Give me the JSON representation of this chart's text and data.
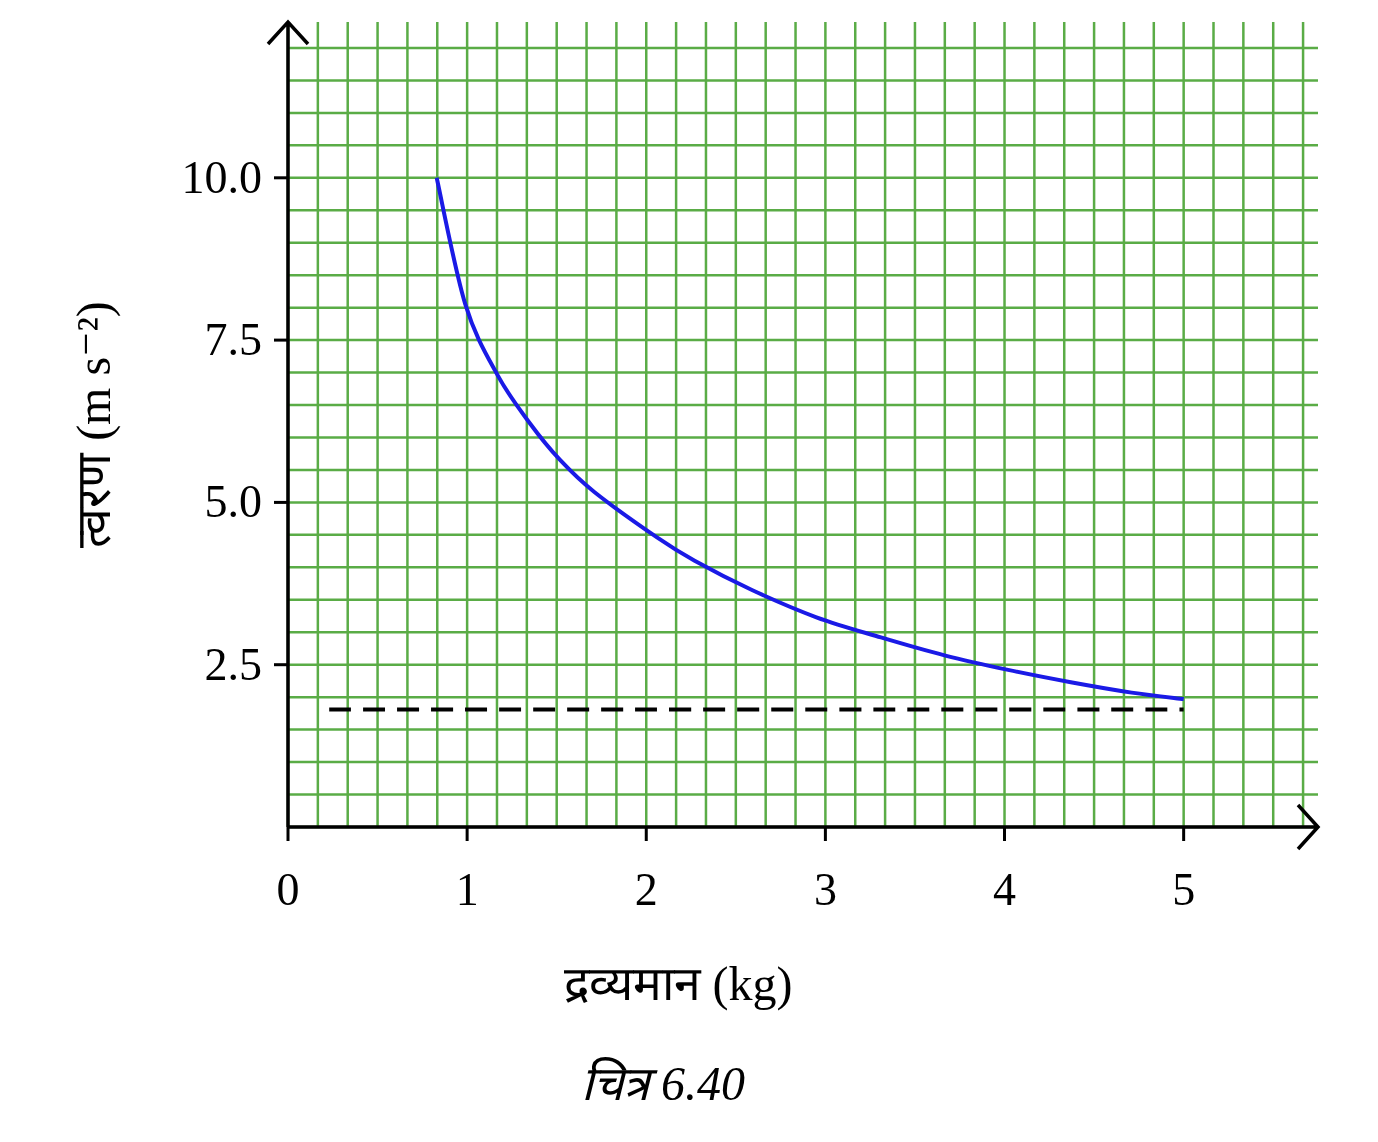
{
  "chart_data": {
    "type": "line",
    "xlabel": "द्रव्यमान (kg)",
    "ylabel": "त्वरण (m s⁻²)",
    "annotations": [
      "चित्र 6.40"
    ],
    "xlim": [
      0,
      5.75
    ],
    "ylim": [
      0,
      12.4
    ],
    "xticks": [
      0,
      1,
      2,
      3,
      4,
      5
    ],
    "yticks": [
      {
        "value": 2.5,
        "label": "2.5"
      },
      {
        "value": 5,
        "label": "5.0"
      },
      {
        "value": 7.5,
        "label": "7.5"
      },
      {
        "value": 10,
        "label": "10.0"
      }
    ],
    "grid": true,
    "series": [
      {
        "color": "#1a1ae6",
        "x": [
          0.83,
          0.99,
          1.17,
          1.35,
          1.52,
          1.71,
          2.06,
          2.27,
          2.59,
          2.95,
          3.31,
          3.67,
          4.02,
          4.37,
          4.71,
          5.0
        ],
        "values": [
          10.0,
          8.05,
          6.96,
          6.22,
          5.65,
          5.16,
          4.46,
          4.1,
          3.65,
          3.23,
          2.92,
          2.64,
          2.42,
          2.23,
          2.07,
          1.97
        ]
      },
      {
        "color": "#000000",
        "line_style": "dashed",
        "x": [
          0.23,
          5.0
        ],
        "values": [
          1.81,
          1.81
        ]
      }
    ]
  }
}
